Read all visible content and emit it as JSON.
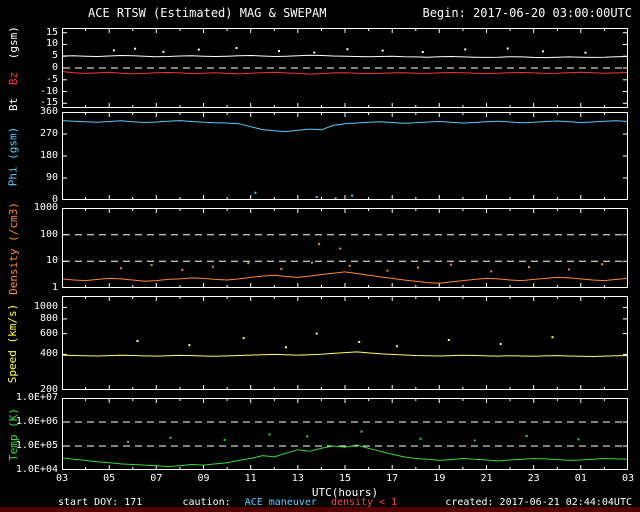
{
  "header": {
    "title": "ACE RTSW (Estimated) MAG & SWEPAM",
    "begin": "Begin: 2017-06-20 03:00:00UTC"
  },
  "footer": {
    "start_doy": "start DOY: 171",
    "caution_label": "caution:",
    "caution_text": "ACE maneuver",
    "density_warning": "density < 1",
    "created": "created: 2017-06-21 02:44:04UTC"
  },
  "colors": {
    "background": "#000000",
    "frame": "#ffffff",
    "bt": "#ffffff",
    "bz": "#ff3333",
    "phi": "#55ccff",
    "density": "#ff8833",
    "speed": "#ffff55",
    "temp": "#33dd33",
    "warning": "#ff4444",
    "caution_text_color": "#55ccff",
    "bottom_strip": "#550000"
  },
  "chart_data": {
    "type": "line",
    "title": "ACE RTSW (Estimated) MAG & SWEPAM",
    "xlabel": "UTC(hours)",
    "xlim": [
      3,
      27
    ],
    "xaxis_ticks": [
      {
        "h": 3,
        "label": "03"
      },
      {
        "h": 5,
        "label": "05"
      },
      {
        "h": 7,
        "label": "07"
      },
      {
        "h": 9,
        "label": "09"
      },
      {
        "h": 11,
        "label": "11"
      },
      {
        "h": 13,
        "label": "13"
      },
      {
        "h": 15,
        "label": "15"
      },
      {
        "h": 17,
        "label": "17"
      },
      {
        "h": 19,
        "label": "19"
      },
      {
        "h": 21,
        "label": "21"
      },
      {
        "h": 23,
        "label": "23"
      },
      {
        "h": 25,
        "label": "01"
      },
      {
        "h": 27,
        "label": "03"
      }
    ],
    "x": [
      3,
      3.5,
      4,
      4.5,
      5,
      5.5,
      6,
      6.5,
      7,
      7.5,
      8,
      8.5,
      9,
      9.5,
      10,
      10.5,
      11,
      11.5,
      12,
      12.5,
      13,
      13.5,
      14,
      14.5,
      15,
      15.5,
      16,
      16.5,
      17,
      17.5,
      18,
      18.5,
      19,
      19.5,
      20,
      20.5,
      21,
      21.5,
      22,
      22.5,
      23,
      23.5,
      24,
      24.5,
      25,
      25.5,
      26,
      26.5,
      27
    ],
    "panels": [
      {
        "id": "bt_bz",
        "ylabel_parts": [
          {
            "text": "Bt",
            "color": "#ffffff"
          },
          {
            "text": "Bz",
            "color": "#ff3333"
          },
          {
            "text": "(gsm)",
            "color": "#ffffff"
          }
        ],
        "scale": "linear",
        "ylim": [
          -17,
          17
        ],
        "yticks": [
          {
            "v": 15,
            "label": "15"
          },
          {
            "v": 10,
            "label": "10"
          },
          {
            "v": 5,
            "label": "5"
          },
          {
            "v": 0,
            "label": "0"
          },
          {
            "v": -5,
            "label": "-5"
          },
          {
            "v": -10,
            "label": "-10"
          },
          {
            "v": -15,
            "label": "-15"
          }
        ],
        "dashed": [
          0
        ],
        "series": [
          {
            "name": "Bt",
            "color": "#ffffff",
            "values": [
              5.1,
              5.2,
              5.0,
              4.9,
              5.1,
              5.3,
              5.2,
              5.0,
              4.8,
              4.9,
              5.1,
              5.2,
              5.0,
              4.9,
              5.0,
              5.2,
              5.3,
              5.1,
              4.9,
              5.0,
              5.2,
              5.4,
              5.3,
              5.1,
              5.0,
              4.9,
              4.8,
              4.9,
              5.0,
              4.8,
              4.7,
              4.6,
              4.8,
              4.9,
              4.7,
              4.6,
              4.5,
              4.6,
              4.8,
              4.7,
              4.5,
              4.4,
              4.6,
              4.7,
              4.6,
              4.5,
              4.6,
              4.8,
              4.9
            ]
          },
          {
            "name": "Bz",
            "color": "#ff3333",
            "values": [
              -1.5,
              -2.0,
              -2.3,
              -2.1,
              -1.8,
              -2.2,
              -2.5,
              -2.3,
              -2.0,
              -1.9,
              -2.1,
              -2.4,
              -2.2,
              -2.0,
              -2.3,
              -2.5,
              -2.2,
              -2.0,
              -1.8,
              -2.1,
              -2.3,
              -2.6,
              -2.4,
              -2.1,
              -2.0,
              -2.2,
              -2.4,
              -2.3,
              -2.1,
              -2.0,
              -2.2,
              -2.3,
              -2.1,
              -1.9,
              -2.0,
              -2.2,
              -2.4,
              -2.2,
              -2.0,
              -1.9,
              -2.1,
              -2.3,
              -2.2,
              -2.0,
              -1.8,
              -2.0,
              -2.2,
              -2.1,
              -1.9
            ]
          }
        ],
        "dots": {
          "color": "#ffffff",
          "x": [
            5.2,
            6.1,
            7.3,
            8.8,
            10.4,
            12.2,
            13.7,
            15.1,
            16.6,
            18.3,
            20.1,
            21.9,
            23.4,
            25.2
          ],
          "y": [
            7.5,
            8.2,
            6.9,
            7.8,
            8.5,
            7.2,
            6.6,
            8.0,
            7.4,
            6.8,
            7.9,
            8.3,
            7.1,
            6.5
          ]
        }
      },
      {
        "id": "phi",
        "ylabel": "Phi (gsm)",
        "color": "#55ccff",
        "scale": "linear",
        "ylim": [
          0,
          360
        ],
        "yticks": [
          {
            "v": 360,
            "label": "360"
          },
          {
            "v": 270,
            "label": "270"
          },
          {
            "v": 180,
            "label": "180"
          },
          {
            "v": 90,
            "label": "90"
          },
          {
            "v": 0,
            "label": "0"
          }
        ],
        "dashed": [],
        "series": [
          {
            "name": "Phi",
            "color": "#55ccff",
            "values": [
              325,
              322,
              320,
              318,
              321,
              324,
              320,
              317,
              319,
              322,
              325,
              321,
              318,
              316,
              315,
              312,
              300,
              288,
              283,
              280,
              285,
              290,
              287,
              305,
              312,
              315,
              318,
              320,
              317,
              314,
              316,
              319,
              321,
              318,
              315,
              317,
              320,
              322,
              319,
              316,
              318,
              321,
              323,
              320,
              317,
              319,
              322,
              324,
              321
            ]
          }
        ],
        "dots": {
          "color": "#55ccff",
          "x": [
            11.2,
            13.8,
            14.6,
            15.3
          ],
          "y": [
            30,
            12,
            6,
            18
          ]
        }
      },
      {
        "id": "density",
        "ylabel": "Density (/cm3)",
        "color": "#ff8833",
        "scale": "log",
        "ylim": [
          1,
          1000
        ],
        "yticks": [
          {
            "v": 1000,
            "label": "1000"
          },
          {
            "v": 100,
            "label": "100"
          },
          {
            "v": 10,
            "label": "10"
          },
          {
            "v": 1,
            "label": "1"
          }
        ],
        "dashed": [
          100,
          10
        ],
        "series": [
          {
            "name": "Density",
            "color": "#ff8833",
            "values": [
              2.2,
              2.0,
              1.9,
              2.1,
              2.3,
              2.2,
              2.0,
              1.8,
              1.9,
              2.1,
              2.2,
              2.4,
              2.3,
              2.1,
              2.0,
              2.2,
              2.5,
              2.8,
              3.0,
              2.7,
              2.5,
              2.8,
              3.2,
              3.6,
              4.0,
              3.5,
              3.0,
              2.6,
              2.3,
              2.0,
              1.8,
              1.6,
              1.5,
              1.7,
              1.9,
              2.1,
              2.3,
              2.2,
              2.0,
              1.9,
              2.1,
              2.3,
              2.5,
              2.4,
              2.2,
              2.0,
              1.9,
              2.1,
              2.3
            ]
          }
        ],
        "dots": {
          "color": "#ff8833",
          "x": [
            5.5,
            6.8,
            8.1,
            9.4,
            10.9,
            12.3,
            13.6,
            13.9,
            14.8,
            15.2,
            16.8,
            18.1,
            19.5,
            21.2,
            22.8,
            24.5,
            25.9
          ],
          "y": [
            5.5,
            7.2,
            4.8,
            6.3,
            8.5,
            5.2,
            9.0,
            45,
            30,
            6.8,
            4.5,
            5.8,
            7.5,
            4.2,
            6.1,
            5.0,
            7.8
          ]
        }
      },
      {
        "id": "speed",
        "ylabel": "Speed (km/s)",
        "color": "#ffff55",
        "scale": "log",
        "ylim": [
          200,
          1250
        ],
        "yticks": [
          {
            "v": 1000,
            "label": "1000"
          },
          {
            "v": 800,
            "label": "800"
          },
          {
            "v": 600,
            "label": "600"
          },
          {
            "v": 400,
            "label": "400"
          },
          {
            "v": 200,
            "label": "200"
          }
        ],
        "dashed": [],
        "series": [
          {
            "name": "Speed",
            "color": "#ffff55",
            "values": [
              395,
              392,
              390,
              388,
              391,
              394,
              392,
              389,
              387,
              390,
              393,
              391,
              388,
              386,
              389,
              392,
              395,
              398,
              400,
              397,
              395,
              398,
              402,
              408,
              415,
              420,
              412,
              405,
              400,
              396,
              392,
              390,
              388,
              391,
              394,
              392,
              389,
              387,
              390,
              388,
              386,
              389,
              391,
              388,
              386,
              384,
              387,
              390,
              392
            ]
          }
        ],
        "dots": {
          "color": "#ffff55",
          "x": [
            6.2,
            8.4,
            10.7,
            12.5,
            13.8,
            15.6,
            17.2,
            19.4,
            21.6,
            23.8
          ],
          "y": [
            520,
            480,
            550,
            460,
            600,
            510,
            470,
            530,
            490,
            560
          ]
        }
      },
      {
        "id": "temp",
        "ylabel": "Temp (K)",
        "color": "#33dd33",
        "scale": "log",
        "ylim": [
          10000,
          10000000
        ],
        "yticks": [
          {
            "v": 10000000,
            "label": "1.0E+07"
          },
          {
            "v": 1000000,
            "label": "1.0E+06"
          },
          {
            "v": 100000,
            "label": "1.0E+05"
          },
          {
            "v": 10000,
            "label": "1.0E+04"
          }
        ],
        "dashed": [
          1000000,
          100000
        ],
        "series": [
          {
            "name": "Temp",
            "color": "#33dd33",
            "values": [
              32000,
              28000,
              25000,
              22000,
              20000,
              18000,
              17000,
              16000,
              15000,
              14000,
              15000,
              17000,
              16000,
              18000,
              20000,
              25000,
              30000,
              40000,
              35000,
              50000,
              70000,
              60000,
              80000,
              100000,
              90000,
              110000,
              80000,
              60000,
              45000,
              35000,
              30000,
              28000,
              25000,
              27000,
              30000,
              28000,
              26000,
              24000,
              26000,
              28000,
              30000,
              29000,
              27000,
              25000,
              26000,
              28000,
              30000,
              29000,
              28000
            ]
          }
        ],
        "dots": {
          "color": "#33dd33",
          "x": [
            5.8,
            7.6,
            9.9,
            11.8,
            13.4,
            15.7,
            18.2,
            20.5,
            22.7,
            24.9
          ],
          "y": [
            150000,
            220000,
            180000,
            300000,
            250000,
            400000,
            200000,
            170000,
            260000,
            190000
          ]
        }
      }
    ]
  }
}
